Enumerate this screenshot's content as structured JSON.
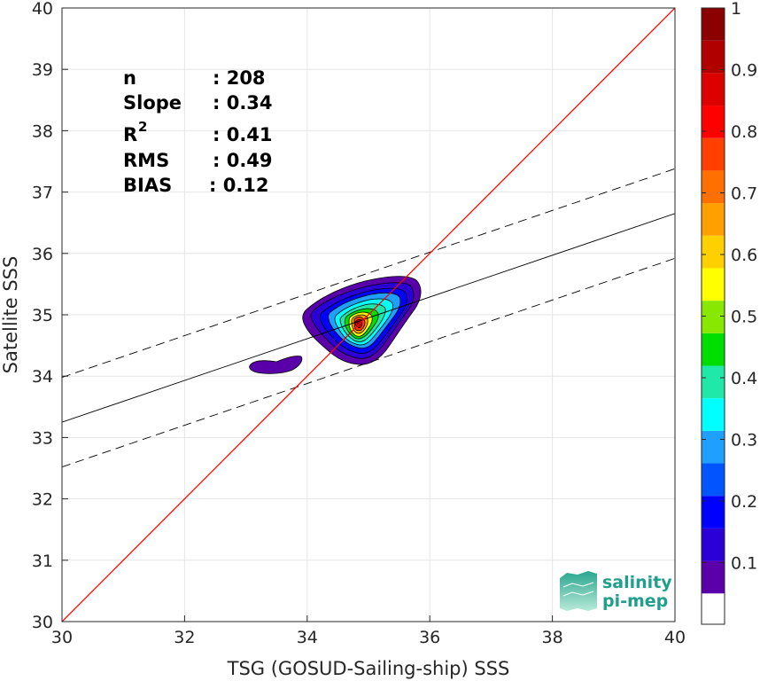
{
  "chart_data": {
    "type": "contour",
    "title": "",
    "xlabel": "TSG (GOSUD-Sailing-ship) SSS",
    "ylabel": "Satellite SSS",
    "xlim": [
      30,
      40
    ],
    "ylim": [
      30,
      40
    ],
    "xticks": [
      30,
      32,
      34,
      36,
      38,
      40
    ],
    "yticks": [
      30,
      31,
      32,
      33,
      34,
      35,
      36,
      37,
      38,
      39,
      40
    ],
    "grid": true,
    "stats": [
      {
        "label": "n",
        "value": ": 208"
      },
      {
        "label": "Slope",
        "value": ": 0.34"
      },
      {
        "label": "R",
        "sup": "2",
        "value": ": 0.41"
      },
      {
        "label": "RMS",
        "value": ": 0.49"
      },
      {
        "label": "BIAS",
        "value": ": 0.12"
      }
    ],
    "identity_line": {
      "from": [
        30,
        30
      ],
      "to": [
        40,
        40
      ],
      "color": "#ff0000"
    },
    "fit_line": {
      "from": [
        30,
        33.25
      ],
      "to": [
        40,
        36.65
      ],
      "color": "#000000"
    },
    "fit_bounds": [
      {
        "from": [
          30,
          33.98
        ],
        "to": [
          40,
          37.38
        ]
      },
      {
        "from": [
          30,
          32.52
        ],
        "to": [
          40,
          35.92
        ]
      }
    ],
    "density_peak": {
      "x": 34.85,
      "y": 34.8
    },
    "contour_levels": [
      0.05,
      0.15,
      0.25,
      0.35,
      0.45,
      0.55,
      0.65,
      0.75,
      0.85,
      0.95
    ],
    "colorbar": {
      "min": 0,
      "max": 1,
      "ticks": [
        0.1,
        0.2,
        0.3,
        0.4,
        0.5,
        0.6,
        0.7,
        0.8,
        0.9,
        1
      ],
      "tick_labels": [
        "0.1",
        "0.2",
        "0.3",
        "0.4",
        "0.5",
        "0.6",
        "0.7",
        "0.8",
        "0.9",
        "1"
      ],
      "colors": [
        "#ffffff",
        "#5a00ab",
        "#2a00d6",
        "#0000ff",
        "#0055ff",
        "#1fa0ff",
        "#00ffff",
        "#1fe8a8",
        "#00dd00",
        "#88e800",
        "#ffff00",
        "#ffd000",
        "#ffa000",
        "#ff7000",
        "#ff4000",
        "#ff0000",
        "#dd0000",
        "#b00000",
        "#8b0000"
      ]
    },
    "logo": {
      "line1": "salinity",
      "line2": "pi-mep"
    }
  }
}
